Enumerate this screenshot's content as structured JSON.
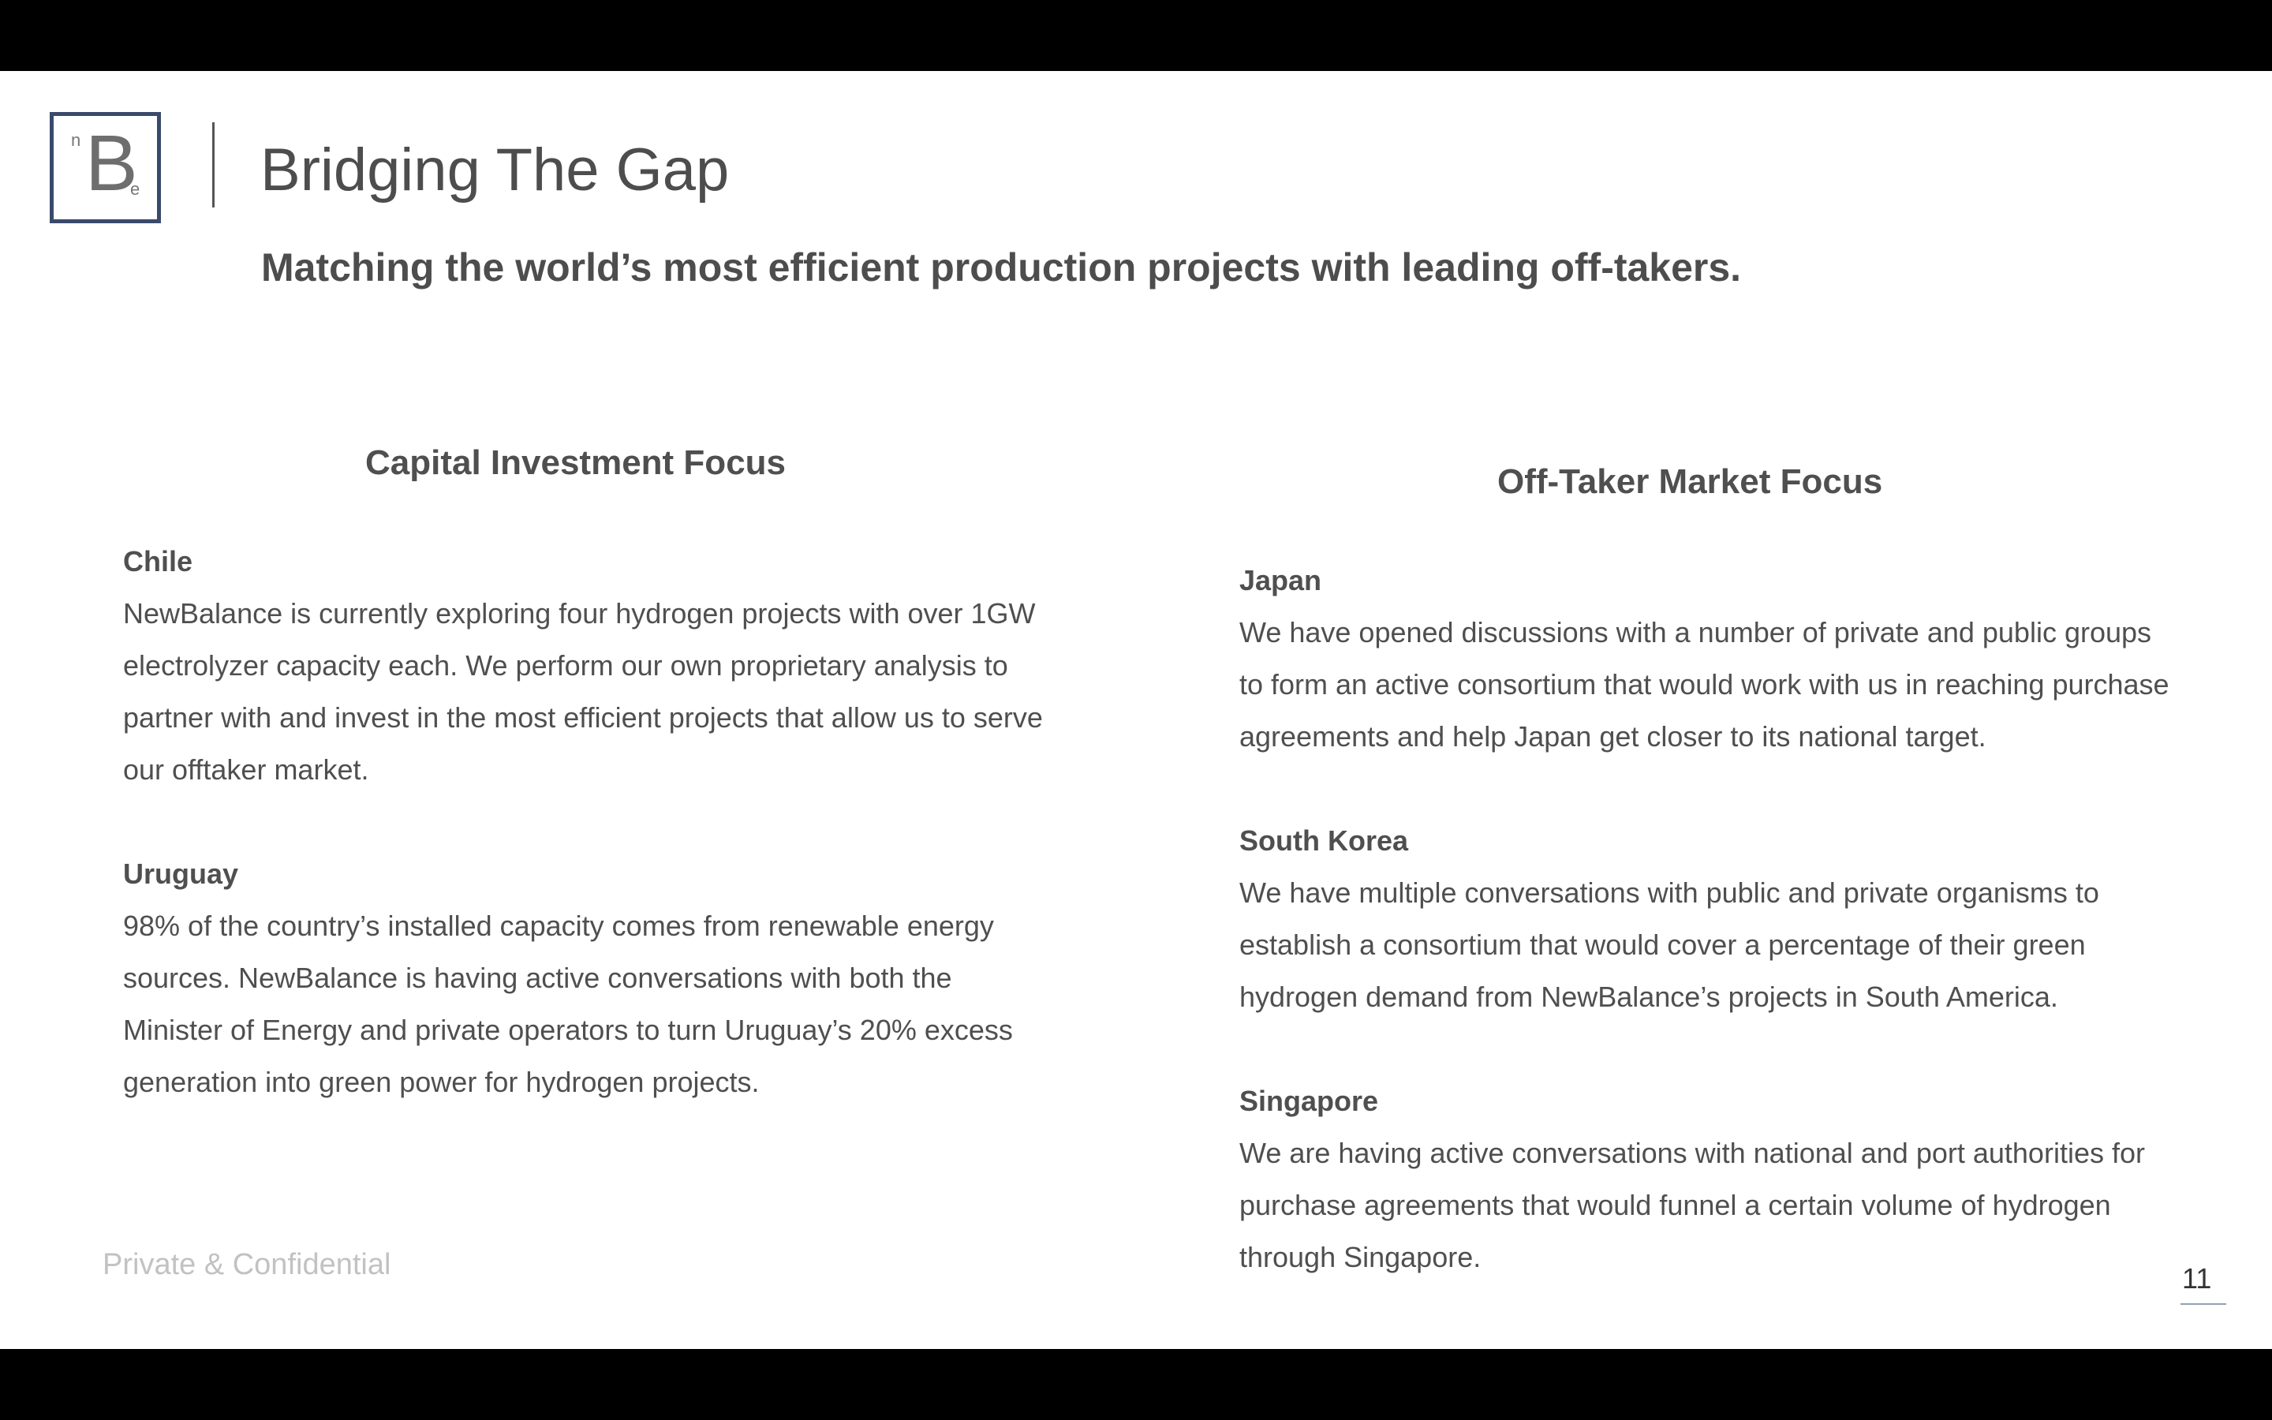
{
  "header": {
    "logo": {
      "superscript": "n",
      "letter": "B",
      "subscript": "e"
    },
    "title": "Bridging The Gap",
    "subtitle": "Matching the world’s most efficient production projects with leading off-takers."
  },
  "left_column": {
    "heading": "Capital Investment Focus",
    "sections": [
      {
        "country": "Chile",
        "text": "NewBalance is currently exploring four hydrogen projects with over 1GW electrolyzer capacity each. We perform our own proprietary analysis to partner with and invest in the most efficient projects that allow us to serve our offtaker market."
      },
      {
        "country": "Uruguay",
        "text": "98% of the country’s installed capacity comes from renewable energy sources. NewBalance is having active conversations with both the Minister of Energy and private operators to turn Uruguay’s 20% excess generation into green power for hydrogen projects."
      }
    ]
  },
  "right_column": {
    "heading": "Off-Taker Market Focus",
    "sections": [
      {
        "country": "Japan",
        "text": "We have opened discussions with a number of private and public groups to form an active consortium that would work with us in reaching purchase agreements and help Japan get closer to its national target."
      },
      {
        "country": "South Korea",
        "text": "We have multiple conversations with public and private organisms to establish a consortium that would cover a percentage of their green hydrogen demand from NewBalance’s projects in South America."
      },
      {
        "country": "Singapore",
        "text": "We are having active conversations with national and port authorities for purchase agreements that would funnel a certain volume of hydrogen through Singapore."
      }
    ]
  },
  "footer": {
    "confidential": "Private & Confidential",
    "page_number": "11"
  },
  "colors": {
    "logo_border": "#3a4a6b",
    "text": "#4f4f4f",
    "footer_text": "#c2c2c2",
    "page_underline": "#8fa3b8"
  }
}
